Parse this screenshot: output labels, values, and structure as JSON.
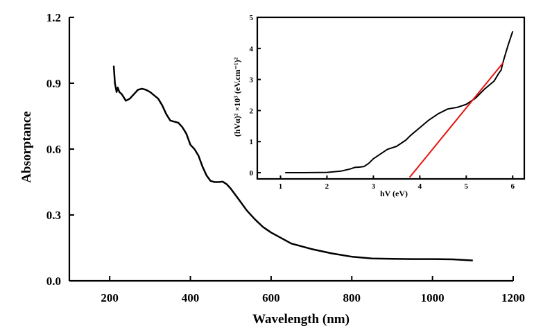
{
  "chart_data": [
    {
      "type": "line",
      "xlabel": "Wavelength (nm)",
      "ylabel": "Absorptance",
      "xlim": [
        100,
        1200
      ],
      "ylim": [
        0.0,
        1.2
      ],
      "xticks": [
        "200",
        "400",
        "600",
        "800",
        "1000",
        "1200"
      ],
      "yticks": [
        "0.0",
        "0.3",
        "0.6",
        "0.9",
        "1.2"
      ],
      "grid": false,
      "series": [
        {
          "color": "#000000",
          "x": [
            210,
            213,
            217,
            220,
            224,
            230,
            240,
            250,
            260,
            270,
            280,
            290,
            300,
            320,
            330,
            340,
            350,
            360,
            370,
            380,
            390,
            400,
            410,
            420,
            430,
            440,
            450,
            460,
            470,
            480,
            490,
            500,
            520,
            540,
            560,
            580,
            600,
            650,
            700,
            750,
            800,
            850,
            900,
            950,
            1000,
            1050,
            1100
          ],
          "y": [
            0.98,
            0.9,
            0.86,
            0.88,
            0.86,
            0.85,
            0.82,
            0.83,
            0.85,
            0.87,
            0.875,
            0.87,
            0.86,
            0.83,
            0.8,
            0.76,
            0.73,
            0.725,
            0.72,
            0.7,
            0.67,
            0.62,
            0.6,
            0.57,
            0.52,
            0.48,
            0.455,
            0.45,
            0.45,
            0.452,
            0.44,
            0.42,
            0.37,
            0.32,
            0.28,
            0.245,
            0.22,
            0.17,
            0.145,
            0.125,
            0.11,
            0.102,
            0.1,
            0.099,
            0.099,
            0.098,
            0.093
          ]
        }
      ]
    },
    {
      "type": "line",
      "xlabel": "hV (eV)",
      "ylabel": "(hVα)² ×10³ (eV.cm⁻¹)²",
      "xlim": [
        0.5,
        6.25
      ],
      "ylim": [
        -0.2,
        5
      ],
      "xticks": [
        "1",
        "2",
        "3",
        "4",
        "5",
        "6"
      ],
      "yticks": [
        "0",
        "1",
        "2",
        "3",
        "4",
        "5"
      ],
      "grid": false,
      "series": [
        {
          "color": "#000000",
          "x": [
            1.1,
            1.5,
            2.0,
            2.3,
            2.5,
            2.6,
            2.7,
            2.8,
            2.9,
            3.0,
            3.1,
            3.3,
            3.5,
            3.7,
            3.8,
            4.0,
            4.2,
            4.4,
            4.6,
            4.8,
            5.0,
            5.2,
            5.4,
            5.6,
            5.7,
            5.75,
            5.8,
            5.9,
            6.0
          ],
          "y": [
            0.0,
            0.0,
            0.01,
            0.05,
            0.12,
            0.17,
            0.18,
            0.2,
            0.3,
            0.45,
            0.55,
            0.75,
            0.85,
            1.05,
            1.2,
            1.45,
            1.7,
            1.9,
            2.05,
            2.1,
            2.2,
            2.4,
            2.7,
            2.95,
            3.2,
            3.3,
            3.6,
            4.1,
            4.55
          ]
        },
        {
          "color": "#e8120c",
          "x": [
            3.78,
            5.8
          ],
          "y": [
            -0.15,
            3.55
          ]
        }
      ]
    }
  ]
}
